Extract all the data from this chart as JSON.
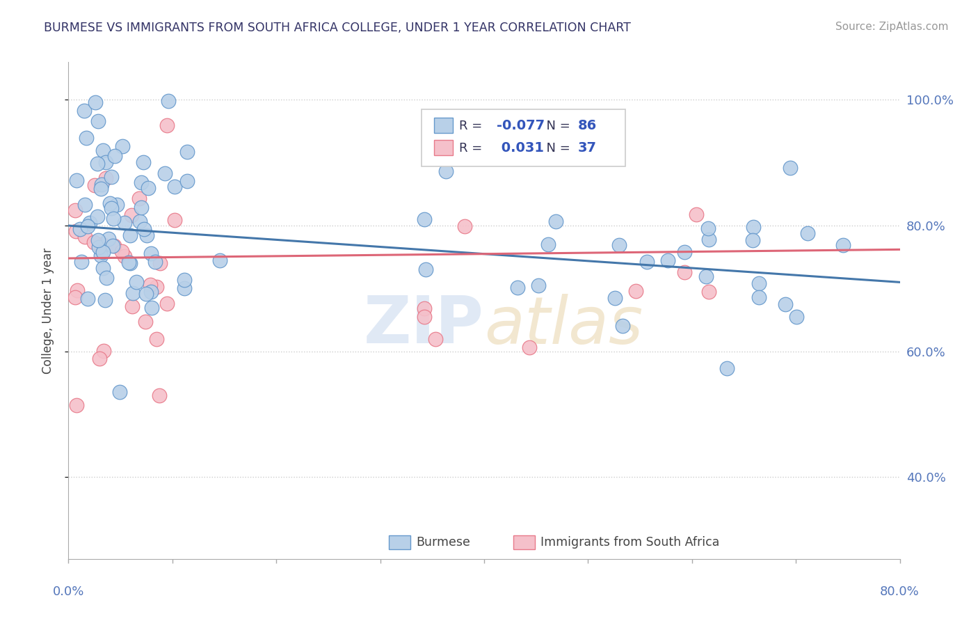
{
  "title": "BURMESE VS IMMIGRANTS FROM SOUTH AFRICA COLLEGE, UNDER 1 YEAR CORRELATION CHART",
  "source": "Source: ZipAtlas.com",
  "ylabel": "College, Under 1 year",
  "ytick_labels": [
    "40.0%",
    "60.0%",
    "80.0%",
    "100.0%"
  ],
  "ytick_values": [
    0.4,
    0.6,
    0.8,
    1.0
  ],
  "xlim": [
    0.0,
    0.8
  ],
  "ylim": [
    0.27,
    1.06
  ],
  "blue_R": -0.077,
  "blue_N": 86,
  "pink_R": 0.031,
  "pink_N": 37,
  "blue_color": "#b8d0e8",
  "pink_color": "#f5c0ca",
  "blue_edge_color": "#6699cc",
  "pink_edge_color": "#e87a8a",
  "blue_line_color": "#4477aa",
  "pink_line_color": "#dd6677",
  "title_color": "#333366",
  "axis_color": "#5577bb",
  "grid_color": "#cccccc",
  "legend_label_blue": "Burmese",
  "legend_label_pink": "Immigrants from South Africa",
  "blue_trendline_x": [
    0.0,
    0.8
  ],
  "blue_trendline_y": [
    0.8,
    0.71
  ],
  "pink_trendline_x": [
    0.0,
    0.8
  ],
  "pink_trendline_y": [
    0.748,
    0.762
  ],
  "blue_seed": 42,
  "pink_seed": 7
}
